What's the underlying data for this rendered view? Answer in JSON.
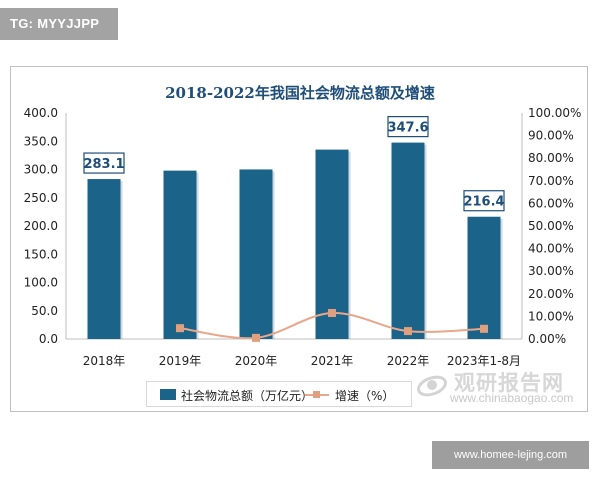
{
  "header": {
    "tag": "TG: MYYJJPP"
  },
  "footer": {
    "url": "www.homee-lejing.com"
  },
  "watermark": {
    "name": "观研报告网",
    "url": "www.chinabaogao.com"
  },
  "chart_data": {
    "type": "bar",
    "title": "2018-2022年我国社会物流总额及增速",
    "categories": [
      "2018年",
      "2019年",
      "2020年",
      "2021年",
      "2022年",
      "2023年1-8月"
    ],
    "series": [
      {
        "name": "社会物流总额（万亿元）",
        "type": "bar",
        "axis": "left",
        "values": [
          283.1,
          298.0,
          300.1,
          335.2,
          347.6,
          216.4
        ],
        "data_labels": [
          "283.1",
          null,
          null,
          null,
          "347.6",
          "216.4"
        ],
        "color": "#1b6388"
      },
      {
        "name": "增速（%）",
        "type": "line",
        "axis": "right",
        "values": [
          null,
          4.8,
          0.5,
          11.5,
          3.5,
          4.5
        ],
        "color": "#e0a080"
      }
    ],
    "y_left": {
      "min": 0,
      "max": 400,
      "step": 50,
      "ticks": [
        "0.0",
        "50.0",
        "100.0",
        "150.0",
        "200.0",
        "250.0",
        "300.0",
        "350.0",
        "400.0"
      ]
    },
    "y_right": {
      "min": 0,
      "max": 100,
      "step": 10,
      "ticks": [
        "0.00%",
        "10.00%",
        "20.00%",
        "30.00%",
        "40.00%",
        "50.00%",
        "60.00%",
        "70.00%",
        "80.00%",
        "90.00%",
        "100.00%"
      ]
    },
    "grid": false,
    "legend": "bottom"
  }
}
